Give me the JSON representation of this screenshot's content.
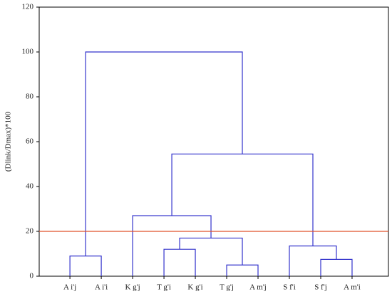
{
  "chart_data": {
    "type": "dendrogram",
    "ylabel": "(Dlink/Dmax)*100",
    "ylim": [
      0,
      120
    ],
    "yticks": [
      0,
      20,
      40,
      60,
      80,
      100,
      120
    ],
    "link_color": "#3333cc",
    "threshold": 20,
    "threshold_color": "#e0502a",
    "tree": {
      "height": 100,
      "children": [
        {
          "height": 9,
          "children": [
            "A i'j",
            "A i'i"
          ]
        },
        {
          "height": 54.5,
          "children": [
            {
              "height": 27,
              "children": [
                "K g'j",
                {
                  "height": 17,
                  "children": [
                    {
                      "height": 12,
                      "children": [
                        "T g'i",
                        "K g'i"
                      ]
                    },
                    {
                      "height": 5,
                      "children": [
                        "T g'j",
                        "A m'j"
                      ]
                    }
                  ]
                }
              ]
            },
            {
              "height": 13.5,
              "children": [
                "S f'i",
                {
                  "height": 7.5,
                  "children": [
                    "S f'j",
                    "A m'i"
                  ]
                }
              ]
            }
          ]
        }
      ]
    }
  }
}
